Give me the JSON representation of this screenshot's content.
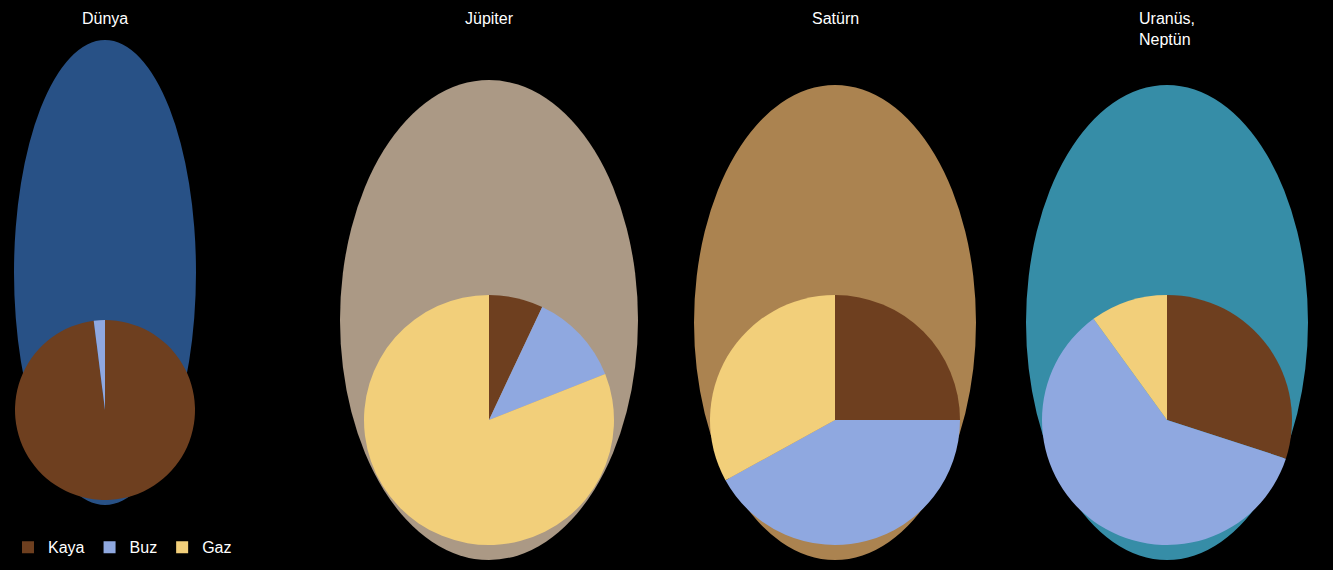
{
  "chart_data": [
    {
      "type": "pie",
      "title": "Dünya",
      "categories": [
        "Kaya",
        "Buz",
        "Gaz"
      ],
      "values": [
        98,
        2,
        0
      ],
      "colors": [
        "#6e3f1f",
        "#8fa8e0",
        "#f2cf7a"
      ],
      "legend": "lower left"
    },
    {
      "type": "pie",
      "title": "Jüpiter",
      "categories": [
        "Kaya",
        "Buz",
        "Gaz"
      ],
      "values": [
        7,
        12,
        81
      ],
      "colors": [
        "#6e3f1f",
        "#8fa8e0",
        "#f2cf7a"
      ],
      "legend": "lower left"
    },
    {
      "type": "pie",
      "title": "Satürn",
      "categories": [
        "Kaya",
        "Buz",
        "Gaz"
      ],
      "values": [
        25,
        42,
        33
      ],
      "colors": [
        "#6e3f1f",
        "#8fa8e0",
        "#f2cf7a"
      ],
      "legend": "lower left"
    },
    {
      "type": "pie",
      "title": "Uranüs, Neptün",
      "categories": [
        "Kaya",
        "Buz",
        "Gaz"
      ],
      "values": [
        30,
        60,
        10
      ],
      "colors": [
        "#6e3f1f",
        "#8fa8e0",
        "#f2cf7a"
      ],
      "legend": "lower left"
    }
  ]
}
